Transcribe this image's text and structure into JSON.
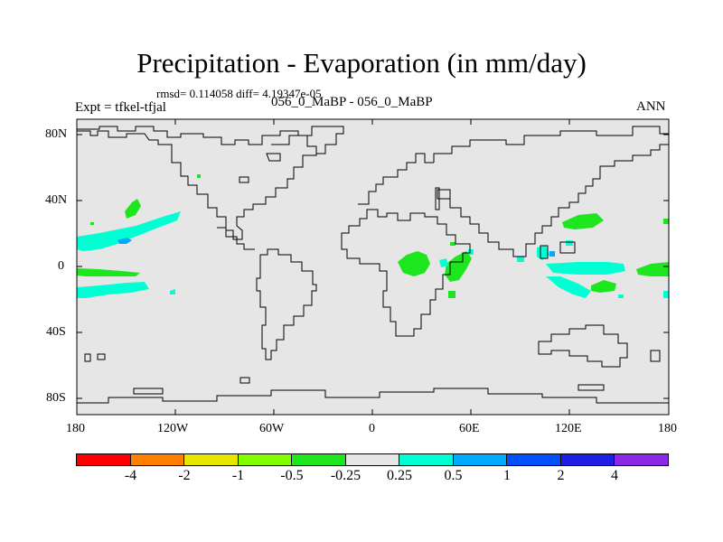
{
  "title": "Precipitation - Evaporation (in mm/day)",
  "stats": "rmsd= 0.114058 diff= 4.19347e-05",
  "left_label": "Expt = tfkel-tfjal",
  "center_label": "056_0_MaBP - 056_0_MaBP",
  "right_label": "ANN",
  "axes": {
    "lat_ticks": [
      "80N",
      "40N",
      "0",
      "40S",
      "80S"
    ],
    "lon_ticks": [
      "180",
      "120W",
      "60W",
      "0",
      "60E",
      "120E",
      "180"
    ]
  },
  "colorbar": {
    "colors": [
      "#ff0000",
      "#ff8000",
      "#e6e600",
      "#80ff00",
      "#1ee61e",
      "#e6e6e6",
      "#00ffd2",
      "#00aaff",
      "#0050ff",
      "#1e1ee6",
      "#8c28e6"
    ],
    "labels": [
      "-4",
      "-2",
      "-1",
      "-0.5",
      "-0.25",
      "0.25",
      "0.5",
      "1",
      "2",
      "4"
    ]
  },
  "colors": {
    "background": "#e6e6e6",
    "positive_light": "#00ffd2",
    "positive_medium": "#00aaff",
    "negative": "#1ee61e"
  }
}
